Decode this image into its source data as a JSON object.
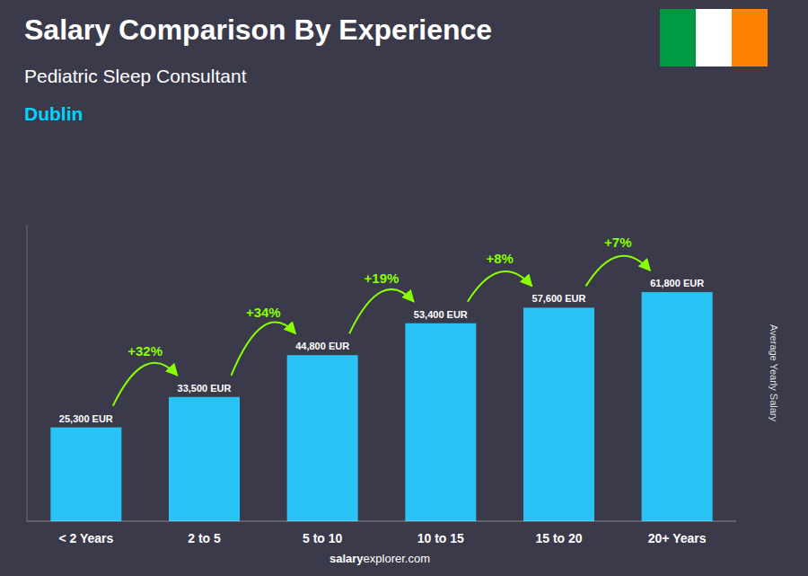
{
  "chart_data": {
    "type": "bar",
    "title": "Salary Comparison By Experience",
    "subtitle": "Pediatric Sleep Consultant",
    "city": "Dublin",
    "ylabel": "Average Yearly Salary",
    "watermark": [
      "salary",
      "explorer.com"
    ],
    "categories": [
      "< 2 Years",
      "2 to 5",
      "5 to 10",
      "10 to 15",
      "15 to 20",
      "20+ Years"
    ],
    "values": [
      25300,
      33500,
      44800,
      53400,
      57600,
      61800
    ],
    "value_labels": [
      "25,300 EUR",
      "33,500 EUR",
      "44,800 EUR",
      "53,400 EUR",
      "57,600 EUR",
      "61,800 EUR"
    ],
    "data_labels": true,
    "change_labels": [
      null,
      "+32%",
      "+34%",
      "+19%",
      "+8%",
      "+7%"
    ],
    "color": "#29c4f5",
    "flag_colors": [
      "#009A44",
      "#FFFFFF",
      "#FF8200"
    ],
    "ylim": [
      0,
      80000
    ],
    "tick_labels": "x",
    "grid": false
  }
}
